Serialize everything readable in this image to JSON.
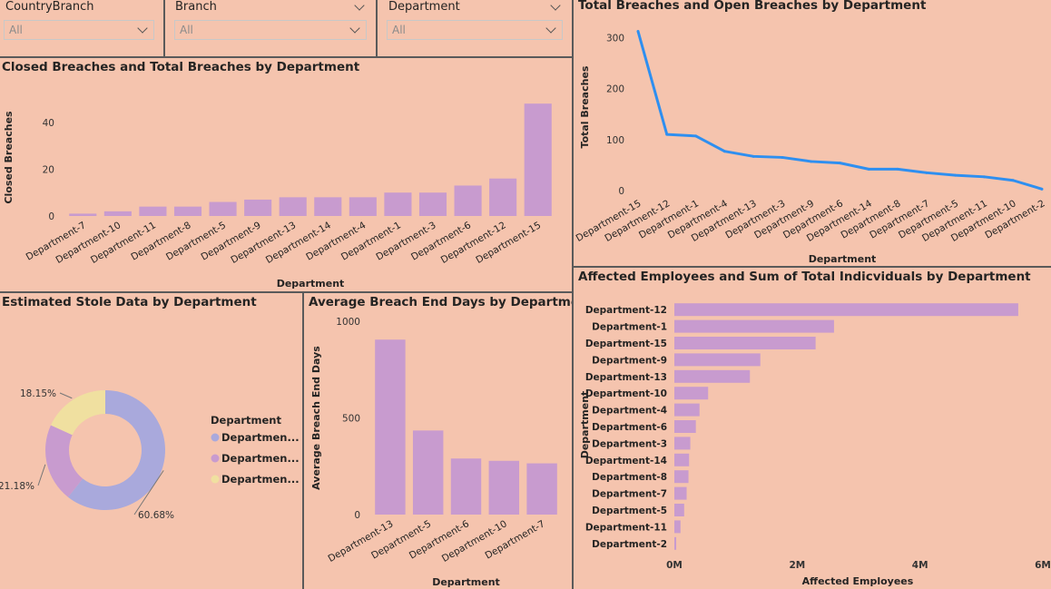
{
  "colors": {
    "background": "#f5c4ae",
    "bar": "#c89bcf",
    "line": "#2e8ff0",
    "donut": [
      "#a9a9dc",
      "#c89bcf",
      "#f0e0a0"
    ]
  },
  "slicers": [
    {
      "label": "CountryBranch",
      "value": "All",
      "icon": "chevron-down-icon"
    },
    {
      "label": "Branch",
      "value": "All",
      "icon": "chevron-down-icon"
    },
    {
      "label": "Department",
      "value": "All",
      "icon": "chevron-down-icon"
    }
  ],
  "chart_data": [
    {
      "id": "closed",
      "type": "bar",
      "title": "Closed Breaches and Total Breaches by Department",
      "xlabel": "Department",
      "ylabel": "Closed Breaches",
      "yticks": [
        0,
        20,
        40
      ],
      "ylim": [
        0,
        50
      ],
      "categories": [
        "Department-7",
        "Department-10",
        "Department-11",
        "Department-8",
        "Department-5",
        "Department-9",
        "Department-13",
        "Department-14",
        "Department-4",
        "Department-1",
        "Department-3",
        "Department-6",
        "Department-12",
        "Department-15"
      ],
      "values": [
        1,
        2,
        4,
        4,
        6,
        7,
        8,
        8,
        8,
        10,
        10,
        13,
        16,
        48
      ]
    },
    {
      "id": "total",
      "type": "line",
      "title": "Total Breaches and Open Breaches by Department",
      "xlabel": "Department",
      "ylabel": "Total Breaches",
      "yticks": [
        0,
        100,
        200,
        300
      ],
      "ylim": [
        0,
        320
      ],
      "categories": [
        "Department-15",
        "Department-12",
        "Department-1",
        "Department-4",
        "Department-13",
        "Department-3",
        "Department-9",
        "Department-6",
        "Department-14",
        "Department-8",
        "Department-7",
        "Department-5",
        "Department-11",
        "Department-10",
        "Department-2"
      ],
      "values": [
        312,
        110,
        107,
        77,
        67,
        65,
        57,
        54,
        42,
        42,
        35,
        30,
        27,
        20,
        3
      ]
    },
    {
      "id": "stole",
      "type": "pie",
      "title": "Estimated Stole Data by Department",
      "legend_title": "Department",
      "legend_position": "right",
      "labels": [
        "Departmen...",
        "Departmen...",
        "Departmen..."
      ],
      "values": [
        60.68,
        21.18,
        18.15
      ],
      "value_labels": [
        "60.68%",
        "21.18%",
        "18.15%"
      ]
    },
    {
      "id": "avgdays",
      "type": "bar",
      "title": "Average Breach End Days by Department",
      "xlabel": "Department",
      "ylabel": "Average Breach End Days",
      "yticks": [
        0,
        500,
        1000
      ],
      "ylim": [
        0,
        1000
      ],
      "categories": [
        "Department-13",
        "Department-5",
        "Department-6",
        "Department-10",
        "Department-7"
      ],
      "values": [
        905,
        435,
        290,
        278,
        265
      ]
    },
    {
      "id": "affected",
      "type": "bar",
      "orientation": "horizontal",
      "title": "Affected Employees and Sum of Total Indicviduals by Department",
      "xlabel": "Affected Employees",
      "ylabel": "Department",
      "xticks": [
        0,
        2000000,
        4000000,
        6000000
      ],
      "xtick_labels": [
        "0M",
        "2M",
        "4M",
        "6M"
      ],
      "xlim": [
        0,
        6000000
      ],
      "categories": [
        "Department-12",
        "Department-1",
        "Department-15",
        "Department-9",
        "Department-13",
        "Department-10",
        "Department-4",
        "Department-6",
        "Department-3",
        "Department-14",
        "Department-8",
        "Department-7",
        "Department-5",
        "Department-11",
        "Department-2"
      ],
      "values": [
        5600000,
        2600000,
        2300000,
        1400000,
        1230000,
        550000,
        410000,
        350000,
        260000,
        240000,
        230000,
        200000,
        160000,
        100000,
        30000
      ]
    }
  ]
}
